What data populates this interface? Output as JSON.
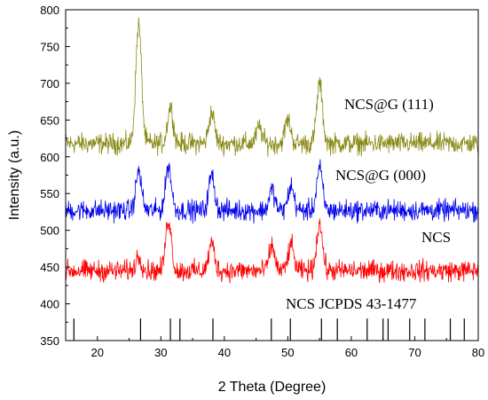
{
  "chart_data": {
    "type": "line",
    "title": "",
    "xlabel": "2 Theta (Degree)",
    "ylabel": "Intensity (a.u.)",
    "xlim": [
      15,
      80
    ],
    "ylim": [
      350,
      800
    ],
    "xticks": [
      20,
      30,
      40,
      50,
      60,
      70,
      80
    ],
    "yticks": [
      350,
      400,
      450,
      500,
      550,
      600,
      650,
      700,
      750,
      800
    ],
    "grid": false,
    "legend": "inline labels",
    "series": [
      {
        "name": "NCS@G (111)",
        "color": "#8b8b1a",
        "baseline": 618,
        "noise": 10,
        "x": [
          26.5,
          31.5,
          38.0,
          45.5,
          50.0,
          55.0
        ],
        "y": [
          780,
          668,
          660,
          640,
          650,
          700
        ]
      },
      {
        "name": "NCS@G (000)",
        "color": "#0000ee",
        "baseline": 527,
        "noise": 10,
        "x": [
          26.5,
          31.2,
          38.0,
          47.5,
          50.5,
          55.0
        ],
        "y": [
          580,
          588,
          575,
          555,
          560,
          585
        ]
      },
      {
        "name": "NCS",
        "color": "#ff0000",
        "baseline": 445,
        "noise": 10,
        "x": [
          26.5,
          31.2,
          38.0,
          47.5,
          50.5,
          55.0
        ],
        "y": [
          465,
          515,
          482,
          478,
          480,
          510
        ]
      }
    ],
    "reference": {
      "name": "NCS JCPDS 43-1477",
      "color": "#000000",
      "x": [
        16.3,
        26.8,
        31.5,
        33.0,
        38.2,
        47.4,
        50.4,
        55.3,
        57.8,
        62.5,
        65.0,
        65.8,
        69.2,
        71.6,
        75.6,
        77.8
      ],
      "height": 30
    }
  }
}
